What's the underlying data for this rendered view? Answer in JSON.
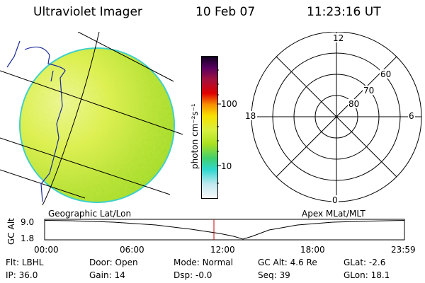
{
  "header": {
    "instrument": "Ultraviolet Imager",
    "date": "10 Feb 07",
    "time": "11:23:16 UT"
  },
  "colorbar": {
    "unit_label": "photon cm⁻²s⁻¹",
    "ticks": [
      "100",
      "10"
    ]
  },
  "polar_plot": {
    "mlt_labels": [
      "12",
      "18",
      "6",
      "0"
    ],
    "lat_labels": [
      "60",
      "70",
      "80"
    ]
  },
  "panel_labels": {
    "left": "Geographic Lat/Lon",
    "right": "Apex MLat/MLT"
  },
  "altitude_plot": {
    "ylabel": "GC Alt",
    "y_ticks": [
      "9.0",
      "1.8"
    ],
    "x_ticks": [
      "00:00",
      "06:00",
      "12:00",
      "18:00",
      "23:59"
    ]
  },
  "footer": {
    "row1": [
      {
        "label": "Flt:",
        "value": "LBHL"
      },
      {
        "label": "Door:",
        "value": "Open"
      },
      {
        "label": "Mode:",
        "value": "Normal"
      },
      {
        "label": "GC Alt:",
        "value": "4.6 Re"
      },
      {
        "label": "GLat:",
        "value": "-2.6"
      }
    ],
    "row2": [
      {
        "label": "IP:",
        "value": "36.0"
      },
      {
        "label": "Gain:",
        "value": "14"
      },
      {
        "label": "Dsp:",
        "value": "-0.0"
      },
      {
        "label": "Seq:",
        "value": "39"
      },
      {
        "label": "GLon:",
        "value": "18.1"
      }
    ]
  },
  "colors": {
    "image_green": "#a8e020",
    "image_yellow": "#dcf040",
    "image_edge": "#40d0c8",
    "time_marker": "#cc0000"
  }
}
